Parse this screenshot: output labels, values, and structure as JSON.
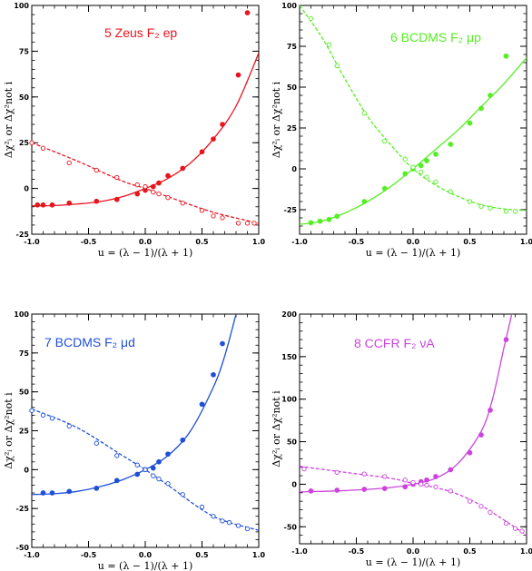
{
  "chart_data": [
    {
      "type": "scatter",
      "title": "5 Zeus F₂ ep",
      "color": "#e8141e",
      "xlabel": "u = (λ − 1)/(λ + 1)",
      "ylabel": "Δχ²ᵢ  or  Δχ²not i",
      "xlim": [
        -1,
        1
      ],
      "ylim": [
        -25,
        100
      ],
      "xticks": [
        "-1.0",
        "-0.5",
        "0.0",
        "0.5",
        "1.0"
      ],
      "yticks": [
        "-25",
        "0",
        "25",
        "50",
        "75",
        "100"
      ],
      "series": [
        {
          "style": "filled",
          "x": [
            -0.95,
            -0.9,
            -0.82,
            -0.67,
            -0.43,
            -0.25,
            -0.07,
            0.0,
            0.07,
            0.12,
            0.2,
            0.33,
            0.5,
            0.6,
            0.68,
            0.82,
            0.9
          ],
          "y": [
            -9,
            -9,
            -9,
            -8,
            -7,
            -6,
            -3,
            -1,
            1,
            3,
            7,
            11,
            20,
            27,
            35,
            62,
            96
          ]
        },
        {
          "style": "open",
          "x": [
            -1.0,
            -0.9,
            -0.67,
            -0.43,
            -0.25,
            -0.07,
            0.0,
            0.07,
            0.12,
            0.2,
            0.33,
            0.5,
            0.6,
            0.68,
            0.82,
            0.9,
            0.96
          ],
          "y": [
            25,
            22,
            14,
            10,
            6,
            2,
            1,
            -2,
            -3,
            -5,
            -8,
            -12,
            -15,
            -16,
            -19,
            -19,
            -19
          ]
        }
      ],
      "curves": [
        {
          "style": "solid",
          "x": [
            -1.0,
            -0.8,
            -0.6,
            -0.4,
            -0.2,
            0.0,
            0.2,
            0.4,
            0.6,
            0.8,
            1.0
          ],
          "y": [
            -9.5,
            -9.3,
            -8.5,
            -7.2,
            -4.5,
            0,
            5.5,
            14,
            27,
            45,
            74
          ]
        },
        {
          "style": "dashed",
          "x": [
            -1.0,
            -0.6,
            -0.2,
            0.0,
            0.2,
            0.6,
            1.0
          ],
          "y": [
            25,
            15,
            4,
            0,
            -4.5,
            -13,
            -19
          ]
        }
      ]
    },
    {
      "type": "scatter",
      "title": "6 BCDMS F₂ μp",
      "color": "#55ee22",
      "xlabel": "u = (λ − 1)/(λ + 1)",
      "ylabel": "Δχ²ᵢ  or  Δχ²not i",
      "xlim": [
        -1,
        1
      ],
      "ylim": [
        -40,
        100
      ],
      "xticks": [
        "-1.0",
        "-0.5",
        "0.0",
        "0.5",
        "1.0"
      ],
      "yticks": [
        "-25",
        "0",
        "25",
        "50",
        "75",
        "100"
      ],
      "series": [
        {
          "style": "filled",
          "x": [
            -0.9,
            -0.82,
            -0.74,
            -0.67,
            -0.43,
            -0.25,
            -0.07,
            0.0,
            0.07,
            0.12,
            0.2,
            0.33,
            0.5,
            0.6,
            0.68,
            0.82
          ],
          "y": [
            -33,
            -32,
            -31,
            -29,
            -20,
            -12,
            -3,
            0,
            2,
            5,
            9,
            15,
            28,
            37,
            45,
            69
          ]
        },
        {
          "style": "open",
          "x": [
            -0.9,
            -0.74,
            -0.67,
            -0.43,
            -0.25,
            -0.07,
            0.0,
            0.07,
            0.12,
            0.2,
            0.33,
            0.5,
            0.6,
            0.68,
            0.82,
            0.9
          ],
          "y": [
            92,
            76,
            63,
            34,
            17,
            6,
            1,
            -2,
            -5,
            -8,
            -14,
            -20,
            -23,
            -24,
            -26,
            -26
          ]
        }
      ],
      "curves": [
        {
          "style": "solid",
          "x": [
            -1.0,
            -0.8,
            -0.6,
            -0.4,
            -0.2,
            0.0,
            0.2,
            0.4,
            0.6,
            0.8,
            1.0
          ],
          "y": [
            -34,
            -32,
            -27,
            -20,
            -11,
            0,
            12,
            24,
            38,
            52,
            68
          ]
        },
        {
          "style": "dashed",
          "x": [
            -1.0,
            -0.8,
            -0.6,
            -0.4,
            -0.2,
            0.0,
            0.2,
            0.4,
            0.6,
            0.8,
            1.0
          ],
          "y": [
            100,
            80,
            55,
            32,
            15,
            0,
            -10,
            -17,
            -22,
            -24.5,
            -25.5
          ]
        }
      ]
    },
    {
      "type": "scatter",
      "title": "7 BCDMS F₂ μd",
      "color": "#1f4fd8",
      "xlabel": "u = (λ − 1)/(λ + 1)",
      "ylabel": "Δχ²ᵢ  or  Δχ²not i",
      "xlim": [
        -1,
        1
      ],
      "ylim": [
        -50,
        100
      ],
      "xticks": [
        "-1.0",
        "-0.5",
        "0.0",
        "0.5",
        "1.0"
      ],
      "yticks": [
        "-50",
        "-25",
        "0",
        "25",
        "50",
        "75",
        "100"
      ],
      "series": [
        {
          "style": "filled",
          "x": [
            -0.9,
            -0.82,
            -0.67,
            -0.43,
            -0.25,
            -0.07,
            0.0,
            0.07,
            0.12,
            0.2,
            0.33,
            0.5,
            0.6,
            0.68
          ],
          "y": [
            -15,
            -15,
            -14,
            -12,
            -7,
            -3,
            0,
            1,
            5,
            10,
            19,
            42,
            61,
            81
          ]
        },
        {
          "style": "open",
          "x": [
            -1.0,
            -0.9,
            -0.82,
            -0.67,
            -0.43,
            -0.25,
            -0.07,
            0.0,
            0.07,
            0.12,
            0.2,
            0.33,
            0.5,
            0.6,
            0.68,
            0.74,
            0.82,
            0.9
          ],
          "y": [
            38,
            35,
            33,
            28,
            17,
            9,
            3,
            0,
            -4,
            -6,
            -9,
            -16,
            -24,
            -30,
            -33,
            -34,
            -36,
            -38
          ]
        }
      ],
      "curves": [
        {
          "style": "solid",
          "x": [
            -1.0,
            -0.8,
            -0.6,
            -0.4,
            -0.2,
            0.0,
            0.2,
            0.4,
            0.6,
            0.7,
            0.8
          ],
          "y": [
            -16,
            -15.5,
            -14,
            -11,
            -6.5,
            0,
            9,
            25,
            53,
            73,
            100
          ]
        },
        {
          "style": "dashed",
          "x": [
            -1.0,
            -0.6,
            -0.2,
            0.0,
            0.2,
            0.6,
            1.0
          ],
          "y": [
            39,
            27,
            9,
            0,
            -10,
            -30,
            -39
          ]
        }
      ]
    },
    {
      "type": "scatter",
      "title": "8 CCFR F₂ νA",
      "color": "#cc44dd",
      "xlabel": "u = (λ − 1)/(λ + 1)",
      "ylabel": "Δχ²ᵢ  or  Δχ²not i",
      "xlim": [
        -1,
        1
      ],
      "ylim": [
        -70,
        200
      ],
      "xticks": [
        "-1.0",
        "-0.5",
        "0.0",
        "0.5",
        "1.0"
      ],
      "yticks": [
        "-50",
        "0",
        "50",
        "100",
        "150",
        "200"
      ],
      "series": [
        {
          "style": "filled",
          "x": [
            -0.9,
            -0.67,
            -0.43,
            -0.25,
            -0.07,
            0.0,
            0.07,
            0.12,
            0.2,
            0.33,
            0.5,
            0.6,
            0.68,
            0.82
          ],
          "y": [
            -8,
            -7,
            -6,
            -5,
            -3,
            0,
            3,
            5,
            9,
            17,
            37,
            58,
            87,
            170
          ]
        },
        {
          "style": "open",
          "x": [
            -0.96,
            -0.67,
            -0.43,
            -0.25,
            -0.07,
            0.0,
            0.07,
            0.12,
            0.2,
            0.33,
            0.5,
            0.6,
            0.68,
            0.82,
            0.9,
            0.96
          ],
          "y": [
            18,
            14,
            12,
            9,
            5,
            2,
            0,
            -1,
            -3,
            -8,
            -20,
            -26,
            -33,
            -46,
            -52,
            -55
          ]
        }
      ],
      "curves": [
        {
          "style": "solid",
          "x": [
            -1.0,
            -0.6,
            -0.2,
            0.0,
            0.2,
            0.4,
            0.6,
            0.7,
            0.8,
            0.87
          ],
          "y": [
            -9,
            -7.5,
            -4,
            0,
            7,
            25,
            62,
            100,
            160,
            200
          ]
        },
        {
          "style": "dashed",
          "x": [
            -1.0,
            -0.6,
            -0.2,
            0.0,
            0.2,
            0.4,
            0.6,
            0.8,
            1.0
          ],
          "y": [
            21,
            14,
            7,
            1,
            -4,
            -12,
            -25,
            -42,
            -60
          ]
        }
      ]
    }
  ]
}
